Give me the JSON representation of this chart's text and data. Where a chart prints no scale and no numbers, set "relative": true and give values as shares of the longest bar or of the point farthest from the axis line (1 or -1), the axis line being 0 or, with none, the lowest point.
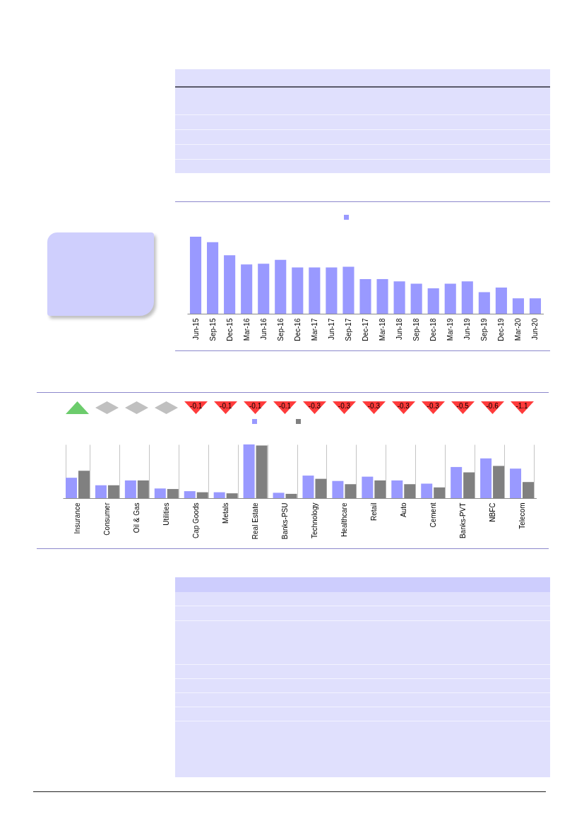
{
  "chart_data": [
    {
      "type": "bar",
      "categories": [
        "Jun-15",
        "Sep-15",
        "Dec-15",
        "Mar-16",
        "Jun-16",
        "Sep-16",
        "Dec-16",
        "Mar-17",
        "Jun-17",
        "Sep-17",
        "Dec-17",
        "Mar-18",
        "Jun-18",
        "Sep-18",
        "Dec-18",
        "Mar-19",
        "Jun-19",
        "Sep-19",
        "Dec-19",
        "Mar-20",
        "Jun-20"
      ],
      "values": [
        1,
        0.93,
        0.76,
        0.64,
        0.65,
        0.7,
        0.6,
        0.6,
        0.6,
        0.61,
        0.45,
        0.45,
        0.42,
        0.39,
        0.33,
        0.39,
        0.42,
        0.28,
        0.34,
        0.2,
        0.2
      ],
      "color": "#9999ff",
      "relative": true
    },
    {
      "type": "bar",
      "categories": [
        "Insurance",
        "Consumer",
        "Oil & Gas",
        "Utilities",
        "Cap Goods",
        "Metals",
        "Real Estate",
        "Banks-PSU",
        "Technology",
        "Healthcare",
        "Retail",
        "Auto",
        "Cement",
        "Banks-PVT",
        "NBFC",
        "Telecom"
      ],
      "series": [
        {
          "color": "#9999ff",
          "values": [
            0.38,
            0.24,
            0.33,
            0.18,
            0.13,
            0.11,
            1,
            0.1,
            0.42,
            0.32,
            0.4,
            0.33,
            0.27,
            0.58,
            0.74,
            0.55
          ]
        },
        {
          "color": "#808080",
          "values": [
            0.51,
            0.24,
            0.33,
            0.17,
            0.11,
            0.09,
            0.98,
            0.08,
            0.36,
            0.26,
            0.33,
            0.26,
            0.2,
            0.48,
            0.6,
            0.3
          ]
        }
      ],
      "relative": true,
      "grid": "x",
      "annotations": [
        "-0.1",
        "-0.1",
        "-0.1",
        "-0.1",
        "-0.3",
        "-0.3",
        "-0.3",
        "-0.3",
        "-0.3",
        "-0.5",
        "-0.6",
        "-1.1"
      ]
    }
  ]
}
